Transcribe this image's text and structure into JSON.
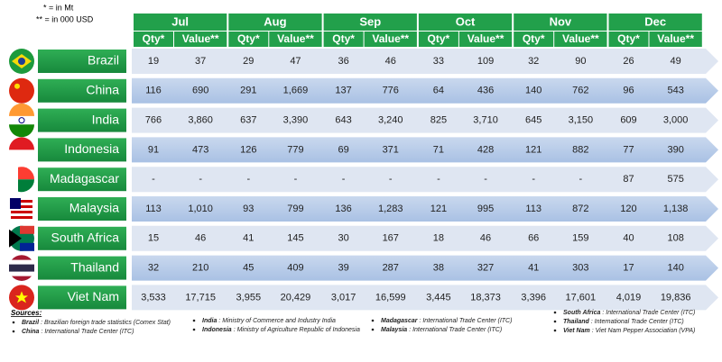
{
  "notes": [
    "* = in Mt",
    "** = in 000 USD"
  ],
  "months": [
    "Jul",
    "Aug",
    "Sep",
    "Oct",
    "Nov",
    "Dec"
  ],
  "columns": [
    "Qty*",
    "Value**"
  ],
  "rows": [
    {
      "country": "Brazil",
      "values": [
        "19",
        "37",
        "29",
        "47",
        "36",
        "46",
        "33",
        "109",
        "32",
        "90",
        "26",
        "49"
      ]
    },
    {
      "country": "China",
      "values": [
        "116",
        "690",
        "291",
        "1,669",
        "137",
        "776",
        "64",
        "436",
        "140",
        "762",
        "96",
        "543"
      ]
    },
    {
      "country": "India",
      "values": [
        "766",
        "3,860",
        "637",
        "3,390",
        "643",
        "3,240",
        "825",
        "3,710",
        "645",
        "3,150",
        "609",
        "3,000"
      ]
    },
    {
      "country": "Indonesia",
      "values": [
        "91",
        "473",
        "126",
        "779",
        "69",
        "371",
        "71",
        "428",
        "121",
        "882",
        "77",
        "390"
      ]
    },
    {
      "country": "Madagascar",
      "values": [
        "-",
        "-",
        "-",
        "-",
        "-",
        "-",
        "-",
        "-",
        "-",
        "-",
        "87",
        "575"
      ]
    },
    {
      "country": "Malaysia",
      "values": [
        "113",
        "1,010",
        "93",
        "799",
        "136",
        "1,283",
        "121",
        "995",
        "113",
        "872",
        "120",
        "1,138"
      ]
    },
    {
      "country": "South Africa",
      "values": [
        "15",
        "46",
        "41",
        "145",
        "30",
        "167",
        "18",
        "46",
        "66",
        "159",
        "40",
        "108"
      ]
    },
    {
      "country": "Thailand",
      "values": [
        "32",
        "210",
        "45",
        "409",
        "39",
        "287",
        "38",
        "327",
        "41",
        "303",
        "17",
        "140"
      ]
    },
    {
      "country": "Viet Nam",
      "values": [
        "3,533",
        "17,715",
        "3,955",
        "20,429",
        "3,017",
        "16,599",
        "3,445",
        "18,373",
        "3,396",
        "17,601",
        "4,019",
        "19,836"
      ]
    }
  ],
  "sources": {
    "title": "Sources:",
    "columns": [
      [
        {
          "name": "Brazil",
          "text": ": Brazilian foreign trade statistics (Comex Stat)"
        },
        {
          "name": "China",
          "text": ": International Trade Center (ITC)"
        }
      ],
      [
        {
          "name": "India",
          "text": ": Ministry of Commerce and Industry India"
        },
        {
          "name": "Indonesia",
          "text": ": Ministry of Agriculture Republic of Indonesia"
        }
      ],
      [
        {
          "name": "Madagascar",
          "text": ": International Trade Center (ITC)"
        },
        {
          "name": "Malaysia",
          "text": ": International Trade Center (ITC)"
        }
      ],
      [
        {
          "name": "South Africa",
          "text": ": International Trade Center (ITC)"
        },
        {
          "name": "Thailand",
          "text": ": International Trade Center (ITC)"
        },
        {
          "name": "Viet Nam",
          "text": ": Viet Nam Pepper Association (VPA)"
        }
      ]
    ]
  }
}
